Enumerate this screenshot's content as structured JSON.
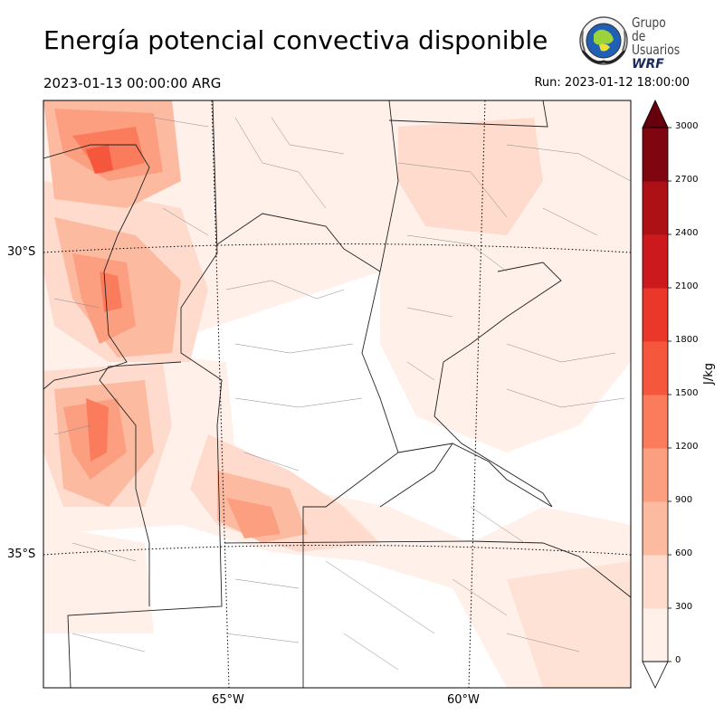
{
  "header": {
    "title": "Energía potencial convectiva disponible",
    "valid_time": "2023-01-13 00:00:00 ARG",
    "run_time": "Run: 2023-01-12 18:00:00"
  },
  "logo": {
    "line1": "Grupo de",
    "line2": "Usuarios",
    "line3": "WRF"
  },
  "map": {
    "variable": "CAPE",
    "lat_labels": [
      "30°S",
      "35°S"
    ],
    "lon_labels": [
      "65°W",
      "60°W"
    ],
    "lat_values": [
      -30,
      -35
    ],
    "lon_values": [
      -65,
      -60
    ]
  },
  "colorbar": {
    "units": "J/kg",
    "ticks": [
      "0",
      "300",
      "600",
      "900",
      "1200",
      "1500",
      "1800",
      "2100",
      "2400",
      "2700",
      "3000"
    ],
    "colors": [
      "#fff0ea",
      "#fedbcc",
      "#fcbba1",
      "#fc9f81",
      "#fb7c5c",
      "#f5573d",
      "#eb362a",
      "#cc191e",
      "#ad1116",
      "#7f0510"
    ],
    "extend_under_color": "#ffffff",
    "extend_over_color": "#67000d"
  }
}
